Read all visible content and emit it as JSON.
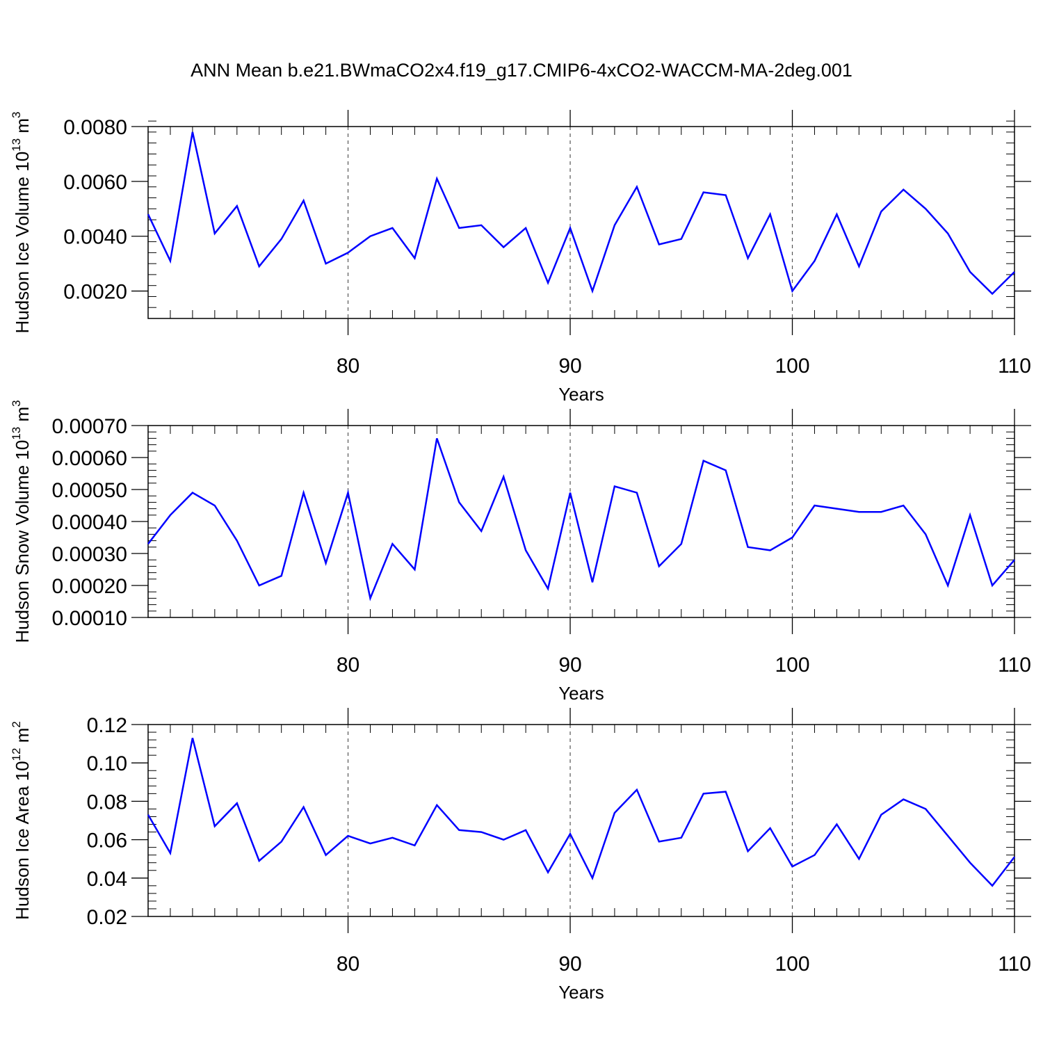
{
  "title": "ANN Mean b.e21.BWmaCO2x4.f19_g17.CMIP6-4xCO2-WACCM-MA-2deg.001",
  "colors": {
    "series": "#0000ff",
    "axis": "#000000",
    "grid": "#555555"
  },
  "chart_data": [
    {
      "type": "line",
      "ylabel": {
        "base": "Hudson Ice Volume 10",
        "exp": "13",
        "unit": " m",
        "unit_exp": "3"
      },
      "xlabel": "Years",
      "xlim": [
        71,
        110
      ],
      "ylim": [
        0.001,
        0.008
      ],
      "xticks": [
        80,
        90,
        100,
        110
      ],
      "xtick_labels": [
        "80",
        "90",
        "100",
        "110"
      ],
      "yticks": [
        0.002,
        0.004,
        0.006,
        0.008
      ],
      "ytick_labels": [
        "0.0020",
        "0.0040",
        "0.0060",
        "0.0080"
      ],
      "x_minor_step": 1,
      "y_minor_step": 0.0004,
      "grid": "vertical dashed at major x ticks",
      "series": [
        {
          "x": [
            71,
            72,
            73,
            74,
            75,
            76,
            77,
            78,
            79,
            80,
            81,
            82,
            83,
            84,
            85,
            86,
            87,
            88,
            89,
            90,
            91,
            92,
            93,
            94,
            95,
            96,
            97,
            98,
            99,
            100,
            101,
            102,
            103,
            104,
            105,
            106,
            107,
            108,
            109,
            110
          ],
          "values": [
            0.0048,
            0.0031,
            0.0078,
            0.0041,
            0.0051,
            0.0029,
            0.0039,
            0.0053,
            0.003,
            0.0034,
            0.004,
            0.0043,
            0.0032,
            0.0061,
            0.0043,
            0.0044,
            0.0036,
            0.0043,
            0.0023,
            0.0043,
            0.002,
            0.0044,
            0.0058,
            0.0037,
            0.0039,
            0.0056,
            0.0055,
            0.0032,
            0.0048,
            0.002,
            0.0031,
            0.0048,
            0.0029,
            0.0049,
            0.0057,
            0.005,
            0.0041,
            0.0027,
            0.0019,
            0.0027
          ]
        }
      ]
    },
    {
      "type": "line",
      "ylabel": {
        "base": "Hudson Snow Volume 10",
        "exp": "13",
        "unit": " m",
        "unit_exp": "3"
      },
      "xlabel": "Years",
      "xlim": [
        71,
        110
      ],
      "ylim": [
        0.0001,
        0.0007
      ],
      "xticks": [
        80,
        90,
        100,
        110
      ],
      "xtick_labels": [
        "80",
        "90",
        "100",
        "110"
      ],
      "yticks": [
        0.0001,
        0.0002,
        0.0003,
        0.0004,
        0.0005,
        0.0006,
        0.0007
      ],
      "ytick_labels": [
        "0.00010",
        "0.00020",
        "0.00030",
        "0.00040",
        "0.00050",
        "0.00060",
        "0.00070"
      ],
      "x_minor_step": 1,
      "y_minor_step": 2e-05,
      "grid": "vertical dashed at major x ticks",
      "series": [
        {
          "x": [
            71,
            72,
            73,
            74,
            75,
            76,
            77,
            78,
            79,
            80,
            81,
            82,
            83,
            84,
            85,
            86,
            87,
            88,
            89,
            90,
            91,
            92,
            93,
            94,
            95,
            96,
            97,
            98,
            99,
            100,
            101,
            102,
            103,
            104,
            105,
            106,
            107,
            108,
            109,
            110
          ],
          "values": [
            0.00033,
            0.00042,
            0.00049,
            0.00045,
            0.00034,
            0.0002,
            0.00023,
            0.00049,
            0.00027,
            0.00049,
            0.00016,
            0.00033,
            0.00025,
            0.00066,
            0.00046,
            0.00037,
            0.00054,
            0.00031,
            0.00019,
            0.00049,
            0.00021,
            0.00051,
            0.00049,
            0.00026,
            0.00033,
            0.00059,
            0.00056,
            0.00032,
            0.00031,
            0.00035,
            0.00045,
            0.00044,
            0.00043,
            0.00043,
            0.00045,
            0.00036,
            0.0002,
            0.00042,
            0.0002,
            0.00028
          ]
        }
      ]
    },
    {
      "type": "line",
      "ylabel": {
        "base": "Hudson Ice Area 10",
        "exp": "12",
        "unit": " m",
        "unit_exp": "2"
      },
      "xlabel": "Years",
      "xlim": [
        71,
        110
      ],
      "ylim": [
        0.02,
        0.12
      ],
      "xticks": [
        80,
        90,
        100,
        110
      ],
      "xtick_labels": [
        "80",
        "90",
        "100",
        "110"
      ],
      "yticks": [
        0.02,
        0.04,
        0.06,
        0.08,
        0.1,
        0.12
      ],
      "ytick_labels": [
        "0.02",
        "0.04",
        "0.06",
        "0.08",
        "0.10",
        "0.12"
      ],
      "x_minor_step": 1,
      "y_minor_step": 0.004,
      "grid": "vertical dashed at major x ticks",
      "series": [
        {
          "x": [
            71,
            72,
            73,
            74,
            75,
            76,
            77,
            78,
            79,
            80,
            81,
            82,
            83,
            84,
            85,
            86,
            87,
            88,
            89,
            90,
            91,
            92,
            93,
            94,
            95,
            96,
            97,
            98,
            99,
            100,
            101,
            102,
            103,
            104,
            105,
            106,
            107,
            108,
            109,
            110
          ],
          "values": [
            0.073,
            0.053,
            0.113,
            0.067,
            0.079,
            0.049,
            0.059,
            0.077,
            0.052,
            0.062,
            0.058,
            0.061,
            0.057,
            0.078,
            0.065,
            0.064,
            0.06,
            0.065,
            0.043,
            0.063,
            0.04,
            0.074,
            0.086,
            0.059,
            0.061,
            0.084,
            0.085,
            0.054,
            0.066,
            0.046,
            0.052,
            0.068,
            0.05,
            0.073,
            0.081,
            0.076,
            0.062,
            0.048,
            0.036,
            0.051
          ]
        }
      ]
    }
  ]
}
